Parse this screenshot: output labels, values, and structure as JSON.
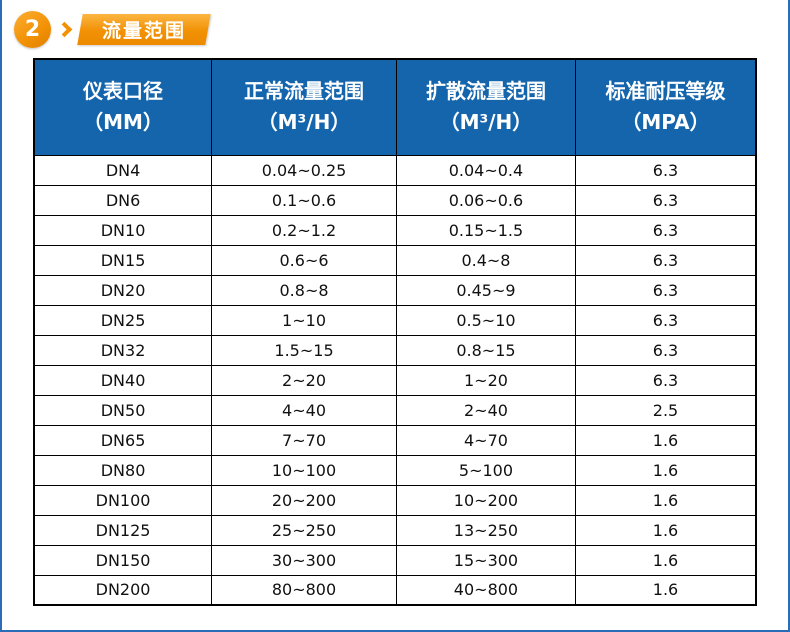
{
  "theme": {
    "blue": "#1565ad",
    "orange": "#f29104",
    "border_blue": "#2a6db6"
  },
  "section_header": {
    "badge_number": "2",
    "title": "流量范围"
  },
  "table": {
    "columns": [
      {
        "title": "仪表口径",
        "unit": "（MM）"
      },
      {
        "title": "正常流量范围",
        "unit": "（M³/H）"
      },
      {
        "title": "扩散流量范围",
        "unit": "（M³/H）"
      },
      {
        "title": "标准耐压等级",
        "unit": "（MPA）"
      }
    ],
    "rows": [
      [
        "DN4",
        "0.04~0.25",
        "0.04~0.4",
        "6.3"
      ],
      [
        "DN6",
        "0.1~0.6",
        "0.06~0.6",
        "6.3"
      ],
      [
        "DN10",
        "0.2~1.2",
        "0.15~1.5",
        "6.3"
      ],
      [
        "DN15",
        "0.6~6",
        "0.4~8",
        "6.3"
      ],
      [
        "DN20",
        "0.8~8",
        "0.45~9",
        "6.3"
      ],
      [
        "DN25",
        "1~10",
        "0.5~10",
        "6.3"
      ],
      [
        "DN32",
        "1.5~15",
        "0.8~15",
        "6.3"
      ],
      [
        "DN40",
        "2~20",
        "1~20",
        "6.3"
      ],
      [
        "DN50",
        "4~40",
        "2~40",
        "2.5"
      ],
      [
        "DN65",
        "7~70",
        "4~70",
        "1.6"
      ],
      [
        "DN80",
        "10~100",
        "5~100",
        "1.6"
      ],
      [
        "DN100",
        "20~200",
        "10~200",
        "1.6"
      ],
      [
        "DN125",
        "25~250",
        "13~250",
        "1.6"
      ],
      [
        "DN150",
        "30~300",
        "15~300",
        "1.6"
      ],
      [
        "DN200",
        "80~800",
        "40~800",
        "1.6"
      ]
    ]
  }
}
